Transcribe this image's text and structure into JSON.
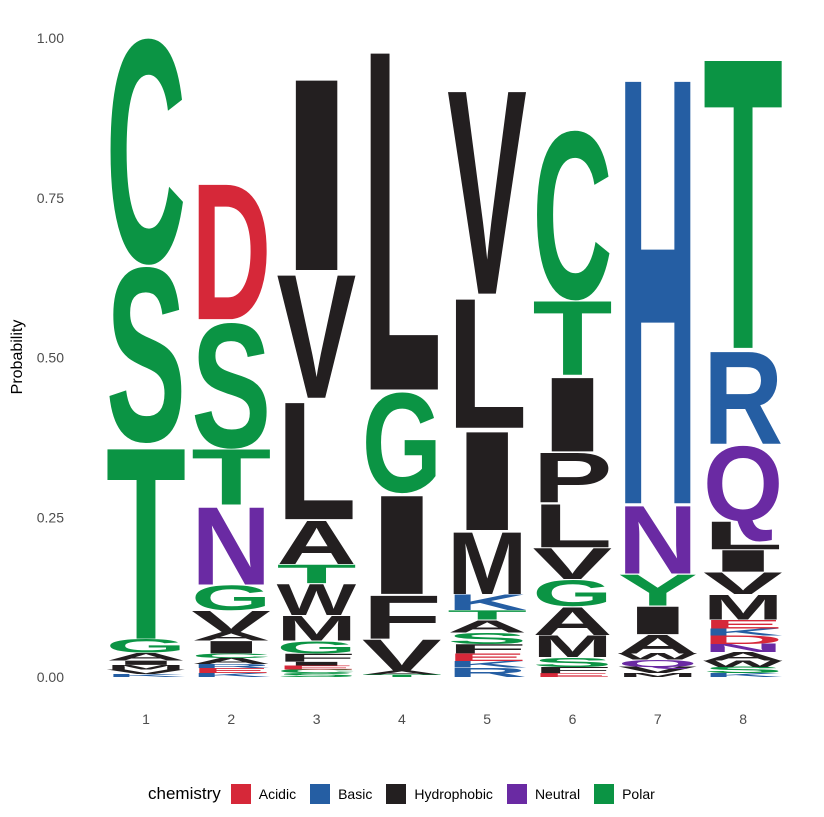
{
  "chart_data": {
    "type": "sequence-logo",
    "ylabel": "Probability",
    "ylim": [
      0,
      1
    ],
    "y_ticks": [
      "0.00",
      "0.25",
      "0.50",
      "0.75",
      "1.00"
    ],
    "positions": [
      "1",
      "2",
      "3",
      "4",
      "5",
      "6",
      "7",
      "8"
    ],
    "legend_title": "chemistry",
    "legend": [
      {
        "name": "Acidic",
        "color": "#d62839"
      },
      {
        "name": "Basic",
        "color": "#255ea3"
      },
      {
        "name": "Hydrophobic",
        "color": "#231f20"
      },
      {
        "name": "Neutral",
        "color": "#6a2aa3"
      },
      {
        "name": "Polar",
        "color": "#0b9444"
      }
    ],
    "colors": {
      "Acidic": "#d62839",
      "Basic": "#255ea3",
      "Hydrophobic": "#231f20",
      "Neutral": "#6a2aa3",
      "Polar": "#0b9444"
    },
    "stacks": [
      {
        "position": "1",
        "letters": [
          {
            "letter": "K",
            "chem": "Basic",
            "p": 0.005
          },
          {
            "letter": "V",
            "chem": "Hydrophobic",
            "p": 0.007
          },
          {
            "letter": "M",
            "chem": "Hydrophobic",
            "p": 0.007
          },
          {
            "letter": "I",
            "chem": "Hydrophobic",
            "p": 0.007
          },
          {
            "letter": "A",
            "chem": "Hydrophobic",
            "p": 0.012
          },
          {
            "letter": "G",
            "chem": "Polar",
            "p": 0.022
          },
          {
            "letter": "T",
            "chem": "Polar",
            "p": 0.31
          },
          {
            "letter": "S",
            "chem": "Polar",
            "p": 0.28
          },
          {
            "letter": "C",
            "chem": "Polar",
            "p": 0.36
          }
        ]
      },
      {
        "position": "2",
        "letters": [
          {
            "letter": "K",
            "chem": "Basic",
            "p": 0.006
          },
          {
            "letter": "E",
            "chem": "Acidic",
            "p": 0.008
          },
          {
            "letter": "R",
            "chem": "Basic",
            "p": 0.006
          },
          {
            "letter": "A",
            "chem": "Hydrophobic",
            "p": 0.01
          },
          {
            "letter": "C",
            "chem": "Polar",
            "p": 0.007
          },
          {
            "letter": "I",
            "chem": "Hydrophobic",
            "p": 0.02
          },
          {
            "letter": "A",
            "chem": "Hydrophobic",
            "p": 0.013
          },
          {
            "letter": "V",
            "chem": "Hydrophobic",
            "p": 0.035
          },
          {
            "letter": "G",
            "chem": "Polar",
            "p": 0.04
          },
          {
            "letter": "N",
            "chem": "Neutral",
            "p": 0.125
          },
          {
            "letter": "T",
            "chem": "Polar",
            "p": 0.09
          },
          {
            "letter": "S",
            "chem": "Polar",
            "p": 0.2
          },
          {
            "letter": "D",
            "chem": "Acidic",
            "p": 0.22
          }
        ]
      },
      {
        "position": "3",
        "letters": [
          {
            "letter": "S",
            "chem": "Polar",
            "p": 0.006
          },
          {
            "letter": "C",
            "chem": "Polar",
            "p": 0.006
          },
          {
            "letter": "E",
            "chem": "Acidic",
            "p": 0.006
          },
          {
            "letter": "I",
            "chem": "Hydrophobic",
            "p": 0.006
          },
          {
            "letter": "F",
            "chem": "Hydrophobic",
            "p": 0.013
          },
          {
            "letter": "G",
            "chem": "Polar",
            "p": 0.02
          },
          {
            "letter": "M",
            "chem": "Hydrophobic",
            "p": 0.04
          },
          {
            "letter": "W",
            "chem": "Hydrophobic",
            "p": 0.05
          },
          {
            "letter": "T",
            "chem": "Polar",
            "p": 0.03
          },
          {
            "letter": "A",
            "chem": "Hydrophobic",
            "p": 0.07
          },
          {
            "letter": "L",
            "chem": "Hydrophobic",
            "p": 0.19
          },
          {
            "letter": "V",
            "chem": "Hydrophobic",
            "p": 0.2
          },
          {
            "letter": "I",
            "chem": "Hydrophobic",
            "p": 0.31
          }
        ]
      },
      {
        "position": "4",
        "letters": [
          {
            "letter": "T",
            "chem": "Polar",
            "p": 0.004
          },
          {
            "letter": "A",
            "chem": "Hydrophobic",
            "p": 0.006
          },
          {
            "letter": "V",
            "chem": "Hydrophobic",
            "p": 0.05
          },
          {
            "letter": "F",
            "chem": "Hydrophobic",
            "p": 0.07
          },
          {
            "letter": "I",
            "chem": "Hydrophobic",
            "p": 0.16
          },
          {
            "letter": "G",
            "chem": "Polar",
            "p": 0.16
          },
          {
            "letter": "L",
            "chem": "Hydrophobic",
            "p": 0.55
          }
        ]
      },
      {
        "position": "5",
        "letters": [
          {
            "letter": "R",
            "chem": "Basic",
            "p": 0.015
          },
          {
            "letter": "K",
            "chem": "Basic",
            "p": 0.01
          },
          {
            "letter": "E",
            "chem": "Acidic",
            "p": 0.012
          },
          {
            "letter": "F",
            "chem": "Hydrophobic",
            "p": 0.015
          },
          {
            "letter": "S",
            "chem": "Polar",
            "p": 0.018
          },
          {
            "letter": "A",
            "chem": "Hydrophobic",
            "p": 0.02
          },
          {
            "letter": "T",
            "chem": "Polar",
            "p": 0.015
          },
          {
            "letter": "K",
            "chem": "Basic",
            "p": 0.025
          },
          {
            "letter": "M",
            "chem": "Hydrophobic",
            "p": 0.1
          },
          {
            "letter": "I",
            "chem": "Hydrophobic",
            "p": 0.16
          },
          {
            "letter": "L",
            "chem": "Hydrophobic",
            "p": 0.21
          },
          {
            "letter": "V",
            "chem": "Hydrophobic",
            "p": 0.33
          }
        ]
      },
      {
        "position": "6",
        "letters": [
          {
            "letter": "E",
            "chem": "Acidic",
            "p": 0.006
          },
          {
            "letter": "F",
            "chem": "Hydrophobic",
            "p": 0.01
          },
          {
            "letter": "S",
            "chem": "Polar",
            "p": 0.015
          },
          {
            "letter": "M",
            "chem": "Hydrophobic",
            "p": 0.035
          },
          {
            "letter": "A",
            "chem": "Hydrophobic",
            "p": 0.045
          },
          {
            "letter": "G",
            "chem": "Polar",
            "p": 0.042
          },
          {
            "letter": "V",
            "chem": "Hydrophobic",
            "p": 0.05
          },
          {
            "letter": "L",
            "chem": "Hydrophobic",
            "p": 0.07
          },
          {
            "letter": "P",
            "chem": "Hydrophobic",
            "p": 0.08
          },
          {
            "letter": "I",
            "chem": "Hydrophobic",
            "p": 0.12
          },
          {
            "letter": "T",
            "chem": "Polar",
            "p": 0.12
          },
          {
            "letter": "C",
            "chem": "Polar",
            "p": 0.27
          }
        ]
      },
      {
        "position": "7",
        "letters": [
          {
            "letter": "M",
            "chem": "Hydrophobic",
            "p": 0.006
          },
          {
            "letter": "V",
            "chem": "Hydrophobic",
            "p": 0.01
          },
          {
            "letter": "Q",
            "chem": "Neutral",
            "p": 0.011
          },
          {
            "letter": "W",
            "chem": "Hydrophobic",
            "p": 0.01
          },
          {
            "letter": "A",
            "chem": "Hydrophobic",
            "p": 0.03
          },
          {
            "letter": "I",
            "chem": "Hydrophobic",
            "p": 0.045
          },
          {
            "letter": "Y",
            "chem": "Polar",
            "p": 0.05
          },
          {
            "letter": "N",
            "chem": "Neutral",
            "p": 0.11
          },
          {
            "letter": "H",
            "chem": "Basic",
            "p": 0.69
          }
        ]
      },
      {
        "position": "8",
        "letters": [
          {
            "letter": "K",
            "chem": "Basic",
            "p": 0.006
          },
          {
            "letter": "S",
            "chem": "Polar",
            "p": 0.01
          },
          {
            "letter": "W",
            "chem": "Hydrophobic",
            "p": 0.01
          },
          {
            "letter": "A",
            "chem": "Hydrophobic",
            "p": 0.013
          },
          {
            "letter": "N",
            "chem": "Neutral",
            "p": 0.013
          },
          {
            "letter": "D",
            "chem": "Acidic",
            "p": 0.013
          },
          {
            "letter": "K",
            "chem": "Basic",
            "p": 0.011
          },
          {
            "letter": "E",
            "chem": "Acidic",
            "p": 0.014
          },
          {
            "letter": "M",
            "chem": "Hydrophobic",
            "p": 0.04
          },
          {
            "letter": "V",
            "chem": "Hydrophobic",
            "p": 0.035
          },
          {
            "letter": "I",
            "chem": "Hydrophobic",
            "p": 0.035
          },
          {
            "letter": "L",
            "chem": "Hydrophobic",
            "p": 0.045
          },
          {
            "letter": "Q",
            "chem": "Neutral",
            "p": 0.12
          },
          {
            "letter": "R",
            "chem": "Basic",
            "p": 0.15
          },
          {
            "letter": "T",
            "chem": "Polar",
            "p": 0.47
          }
        ]
      }
    ]
  }
}
